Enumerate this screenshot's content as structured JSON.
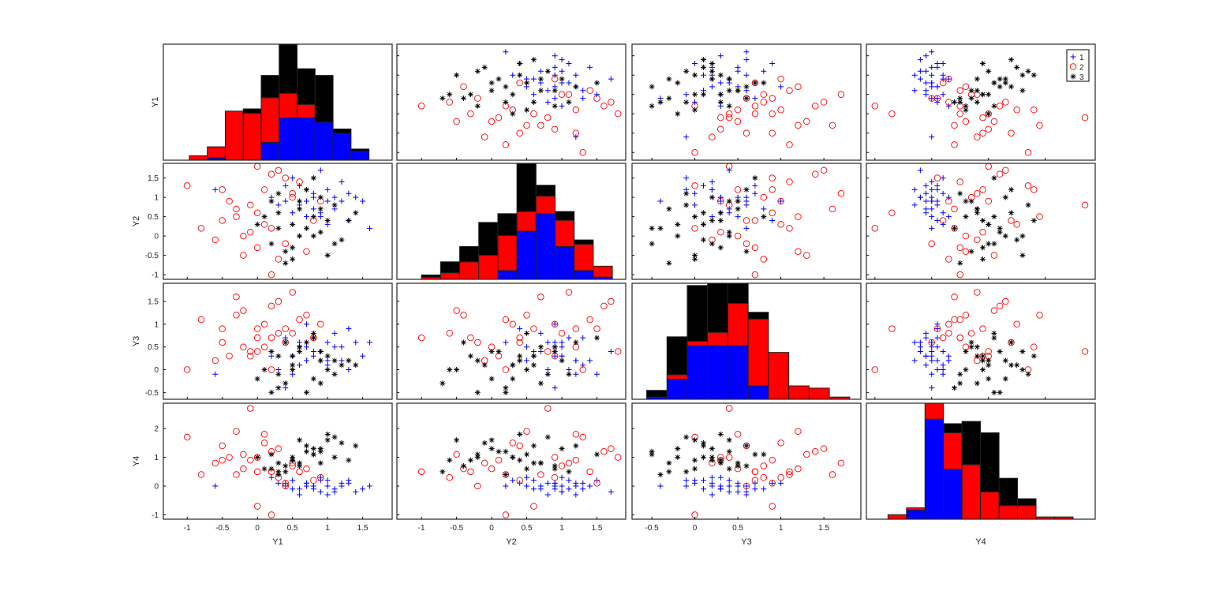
{
  "chart_data": {
    "type": "scatter-matrix",
    "variables": [
      "Y1",
      "Y2",
      "Y3",
      "Y4"
    ],
    "xlim": {
      "Y1": [
        -1.34,
        1.92
      ],
      "Y2": [
        -1.35,
        1.91
      ],
      "Y3": [
        -0.73,
        1.93
      ],
      "Y4": [
        -1.15,
        2.88
      ]
    },
    "ylim": {
      "Y1": [
        -1.2,
        1.8
      ],
      "Y2": [
        -1.12,
        1.88
      ],
      "Y3": [
        -0.65,
        1.9
      ],
      "Y4": [
        -1.15,
        2.88
      ]
    },
    "ticks": {
      "Y1": [
        -1,
        -0.5,
        0,
        0.5,
        1,
        1.5
      ],
      "Y2": [
        -1,
        -0.5,
        0,
        0.5,
        1,
        1.5
      ],
      "Y3": [
        -0.5,
        0,
        0.5,
        1,
        1.5
      ],
      "Y4": [
        -1,
        0,
        1,
        2
      ]
    },
    "legend": {
      "placement": "top-right",
      "entries": [
        "1",
        "2",
        "3"
      ]
    },
    "groups": [
      {
        "name": "1",
        "color": "#0000ff",
        "marker": "plus",
        "points": [
          [
            0.8,
            1.0,
            0.3,
            0.0
          ],
          [
            1.2,
            0.9,
            0.5,
            0.1
          ],
          [
            0.6,
            1.3,
            0.1,
            -0.1
          ],
          [
            0.9,
            0.6,
            0.4,
            0.2
          ],
          [
            1.4,
            1.0,
            0.6,
            -0.2
          ],
          [
            0.3,
            0.8,
            0.0,
            0.1
          ],
          [
            1.0,
            1.2,
            0.2,
            -0.3
          ],
          [
            0.7,
            0.5,
            0.5,
            0.0
          ],
          [
            1.6,
            0.2,
            0.6,
            0.0
          ],
          [
            0.5,
            1.5,
            -0.1,
            0.2
          ],
          [
            1.1,
            0.7,
            0.8,
            -0.1
          ],
          [
            0.2,
            1.0,
            0.3,
            0.3
          ],
          [
            0.9,
            1.7,
            0.4,
            -0.2
          ],
          [
            1.3,
            0.4,
            0.9,
            0.1
          ],
          [
            0.4,
            0.9,
            -0.4,
            0.0
          ],
          [
            0.8,
            1.1,
            0.7,
            -0.1
          ],
          [
            1.0,
            0.3,
            0.1,
            0.2
          ],
          [
            0.6,
            0.8,
            0.6,
            -0.3
          ],
          [
            1.2,
            1.4,
            0.2,
            0.0
          ],
          [
            0.7,
            0.9,
            1.0,
            0.1
          ],
          [
            -0.6,
            1.2,
            -0.1,
            0.0
          ],
          [
            1.5,
            0.9,
            0.3,
            -0.1
          ],
          [
            0.9,
            0.5,
            0.2,
            0.3
          ],
          [
            1.1,
            1.0,
            0.5,
            -0.2
          ],
          [
            0.4,
            1.3,
            0.7,
            0.1
          ],
          [
            0.8,
            0.7,
            0.4,
            0.0
          ],
          [
            1.3,
            1.1,
            0.0,
            0.2
          ],
          [
            0.5,
            0.6,
            0.3,
            -0.1
          ],
          [
            1.0,
            0.9,
            0.6,
            0.0
          ],
          [
            0.7,
            1.2,
            0.2,
            0.1
          ]
        ]
      },
      {
        "name": "2",
        "color": "#ff0000",
        "marker": "circle",
        "points": [
          [
            -1.0,
            1.3,
            0.0,
            1.7
          ],
          [
            -0.8,
            0.2,
            1.1,
            0.4
          ],
          [
            -0.5,
            1.2,
            0.9,
            0.9
          ],
          [
            -0.3,
            0.5,
            1.2,
            1.9
          ],
          [
            0.0,
            -0.3,
            0.7,
            0.5
          ],
          [
            0.2,
            1.6,
            1.4,
            1.2
          ],
          [
            -0.2,
            0.0,
            0.5,
            0.6
          ],
          [
            0.3,
            -0.6,
            0.8,
            0.3
          ],
          [
            0.5,
            1.1,
            1.7,
            0.8
          ],
          [
            -0.1,
            0.8,
            0.4,
            2.7
          ],
          [
            0.1,
            0.3,
            1.0,
            1.5
          ],
          [
            0.4,
            -0.2,
            0.6,
            0.0
          ],
          [
            -0.4,
            0.9,
            0.3,
            1.0
          ],
          [
            0.6,
            1.4,
            1.1,
            0.5
          ],
          [
            0.0,
            0.6,
            0.9,
            -0.7
          ],
          [
            -0.6,
            -0.1,
            0.2,
            0.8
          ],
          [
            0.3,
            1.7,
            1.5,
            1.3
          ],
          [
            0.8,
            0.4,
            0.7,
            0.2
          ],
          [
            -0.2,
            -0.5,
            1.3,
            1.1
          ],
          [
            0.2,
            0.2,
            0.0,
            -1.0
          ],
          [
            0.5,
            1.0,
            0.8,
            0.7
          ],
          [
            -0.3,
            0.7,
            1.6,
            0.4
          ],
          [
            0.1,
            1.2,
            0.5,
            1.8
          ],
          [
            0.7,
            -0.4,
            1.2,
            0.6
          ],
          [
            -0.1,
            0.1,
            0.3,
            0.9
          ],
          [
            0.4,
            1.5,
            0.9,
            0.1
          ],
          [
            -0.5,
            0.4,
            0.6,
            1.4
          ],
          [
            0.9,
            0.9,
            1.0,
            0.3
          ],
          [
            0.2,
            -1.0,
            0.7,
            0.5
          ],
          [
            0.0,
            1.8,
            0.4,
            1.0
          ]
        ]
      },
      {
        "name": "3",
        "color": "#000000",
        "marker": "asterisk",
        "points": [
          [
            0.5,
            0.3,
            0.1,
            1.0
          ],
          [
            0.8,
            0.0,
            -0.2,
            1.3
          ],
          [
            0.3,
            0.6,
            0.3,
            0.8
          ],
          [
            1.0,
            -0.5,
            0.0,
            1.6
          ],
          [
            0.6,
            0.9,
            0.5,
            0.7
          ],
          [
            0.2,
            -0.2,
            -0.5,
            1.1
          ],
          [
            1.3,
            0.4,
            0.2,
            0.9
          ],
          [
            0.7,
            1.2,
            0.6,
            1.4
          ],
          [
            0.4,
            -0.7,
            -0.3,
            0.5
          ],
          [
            0.9,
            0.1,
            0.4,
            1.2
          ],
          [
            0.1,
            0.5,
            0.0,
            0.6
          ],
          [
            1.1,
            0.8,
            -0.1,
            1.7
          ],
          [
            0.5,
            -0.3,
            0.3,
            0.9
          ],
          [
            0.8,
            1.5,
            0.7,
            1.1
          ],
          [
            0.3,
            0.2,
            -0.4,
            0.4
          ],
          [
            1.2,
            -0.1,
            0.1,
            1.5
          ],
          [
            0.6,
            0.7,
            0.5,
            0.8
          ],
          [
            0.0,
            0.3,
            -0.2,
            1.0
          ],
          [
            0.9,
            1.0,
            0.2,
            1.3
          ],
          [
            0.4,
            -0.4,
            0.6,
            0.7
          ],
          [
            1.4,
            0.6,
            0.1,
            1.4
          ],
          [
            0.7,
            0.2,
            -0.5,
            1.2
          ],
          [
            0.2,
            0.9,
            0.4,
            0.6
          ],
          [
            1.0,
            0.4,
            0.3,
            1.8
          ],
          [
            0.5,
            -0.6,
            0.0,
            0.9
          ],
          [
            0.8,
            0.5,
            0.8,
            1.1
          ],
          [
            0.3,
            1.1,
            -0.1,
            0.5
          ],
          [
            1.1,
            -0.2,
            0.2,
            1.0
          ],
          [
            0.6,
            0.0,
            0.4,
            1.6
          ],
          [
            0.9,
            0.7,
            -0.3,
            0.8
          ]
        ]
      }
    ],
    "histograms": [
      {
        "variable": "Y1",
        "bin_range": [
          -0.97,
          1.59
        ],
        "counts": {
          "1": [
            0,
            1,
            0,
            0,
            8,
            19,
            19,
            17,
            12,
            4
          ],
          "2": [
            2,
            5,
            22,
            21,
            20,
            11,
            6,
            0,
            0,
            0
          ],
          "3": [
            0,
            0,
            0,
            2,
            10,
            22,
            16,
            21,
            2,
            1
          ]
        }
      },
      {
        "variable": "Y2",
        "bin_range": [
          -1.0,
          1.72
        ],
        "counts": {
          "1": [
            0,
            0,
            0,
            0,
            4,
            22,
            30,
            15,
            4,
            1
          ],
          "2": [
            1,
            3,
            8,
            11,
            16,
            9,
            8,
            12,
            12,
            5
          ],
          "3": [
            1,
            5,
            7,
            15,
            10,
            22,
            5,
            4,
            2,
            0
          ]
        }
      },
      {
        "variable": "Y3",
        "bin_range": [
          -0.56,
          1.8
        ],
        "counts": {
          "1": [
            1,
            9,
            24,
            24,
            24,
            6,
            0,
            0,
            0,
            0
          ],
          "2": [
            0,
            2,
            2,
            6,
            19,
            30,
            21,
            6,
            5,
            1
          ],
          "3": [
            3,
            17,
            25,
            22,
            9,
            3,
            0,
            0,
            0,
            0
          ]
        }
      },
      {
        "variable": "Y4",
        "bin_range": [
          -0.77,
          2.49
        ],
        "counts": {
          "1": [
            0,
            4,
            44,
            22,
            0,
            0,
            0,
            0,
            0,
            0
          ],
          "2": [
            2,
            1,
            7,
            16,
            24,
            12,
            6,
            6,
            1,
            1
          ],
          "3": [
            0,
            0,
            0,
            4,
            19,
            26,
            12,
            3,
            0,
            0
          ]
        }
      }
    ]
  }
}
